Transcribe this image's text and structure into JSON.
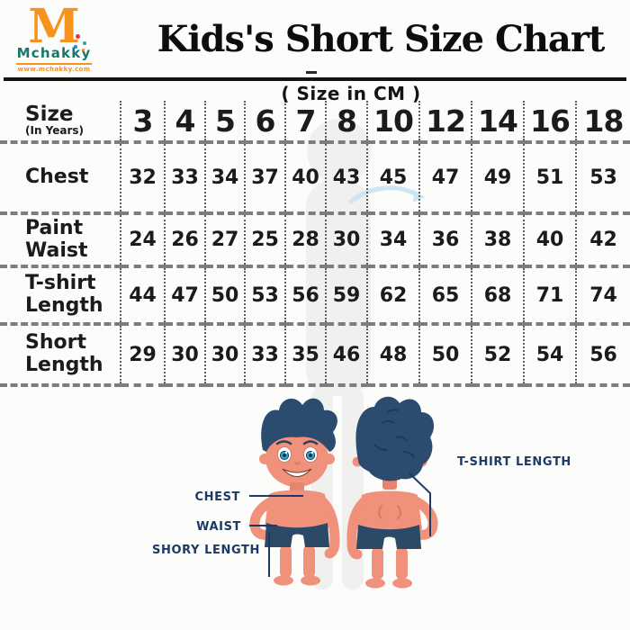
{
  "logo": {
    "letter": "M",
    "name": "Mchakky",
    "url": "www.mchakky.com"
  },
  "header": {
    "title": "Kids's Short Size Chart",
    "subtitle": "( Size in CM )"
  },
  "table": {
    "size_label": "Size",
    "size_sublabel": "(In Years)",
    "columns": [
      "3",
      "4",
      "5",
      "6",
      "7",
      "8",
      "10",
      "12",
      "14",
      "16",
      "18"
    ],
    "rows": [
      {
        "label": "Chest",
        "values": [
          "32",
          "33",
          "34",
          "37",
          "40",
          "43",
          "45",
          "47",
          "49",
          "51",
          "53"
        ]
      },
      {
        "label": "Paint Waist",
        "values": [
          "24",
          "26",
          "27",
          "25",
          "28",
          "30",
          "34",
          "36",
          "38",
          "40",
          "42"
        ]
      },
      {
        "label": "T-shirt Length",
        "values": [
          "44",
          "47",
          "50",
          "53",
          "56",
          "59",
          "62",
          "65",
          "68",
          "71",
          "74"
        ]
      },
      {
        "label": "Short Length",
        "values": [
          "29",
          "30",
          "30",
          "33",
          "35",
          "46",
          "48",
          "50",
          "52",
          "54",
          "56"
        ]
      }
    ]
  },
  "diagram": {
    "chest_label": "CHEST",
    "waist_label": "WAIST",
    "short_length_label": "SHORY LENGTH",
    "tshirt_length_label": "T-SHIRT LENGTH"
  },
  "colors": {
    "accent_orange": "#F6921E",
    "logo_teal": "#15796B",
    "label_navy": "#1C3A63",
    "hair_blue": "#2B4C6F",
    "skin": "#F0917C",
    "shorts_navy": "#2B4A68",
    "table_line_gray": "#7d7d7d",
    "title_black": "#0d0d0d"
  }
}
